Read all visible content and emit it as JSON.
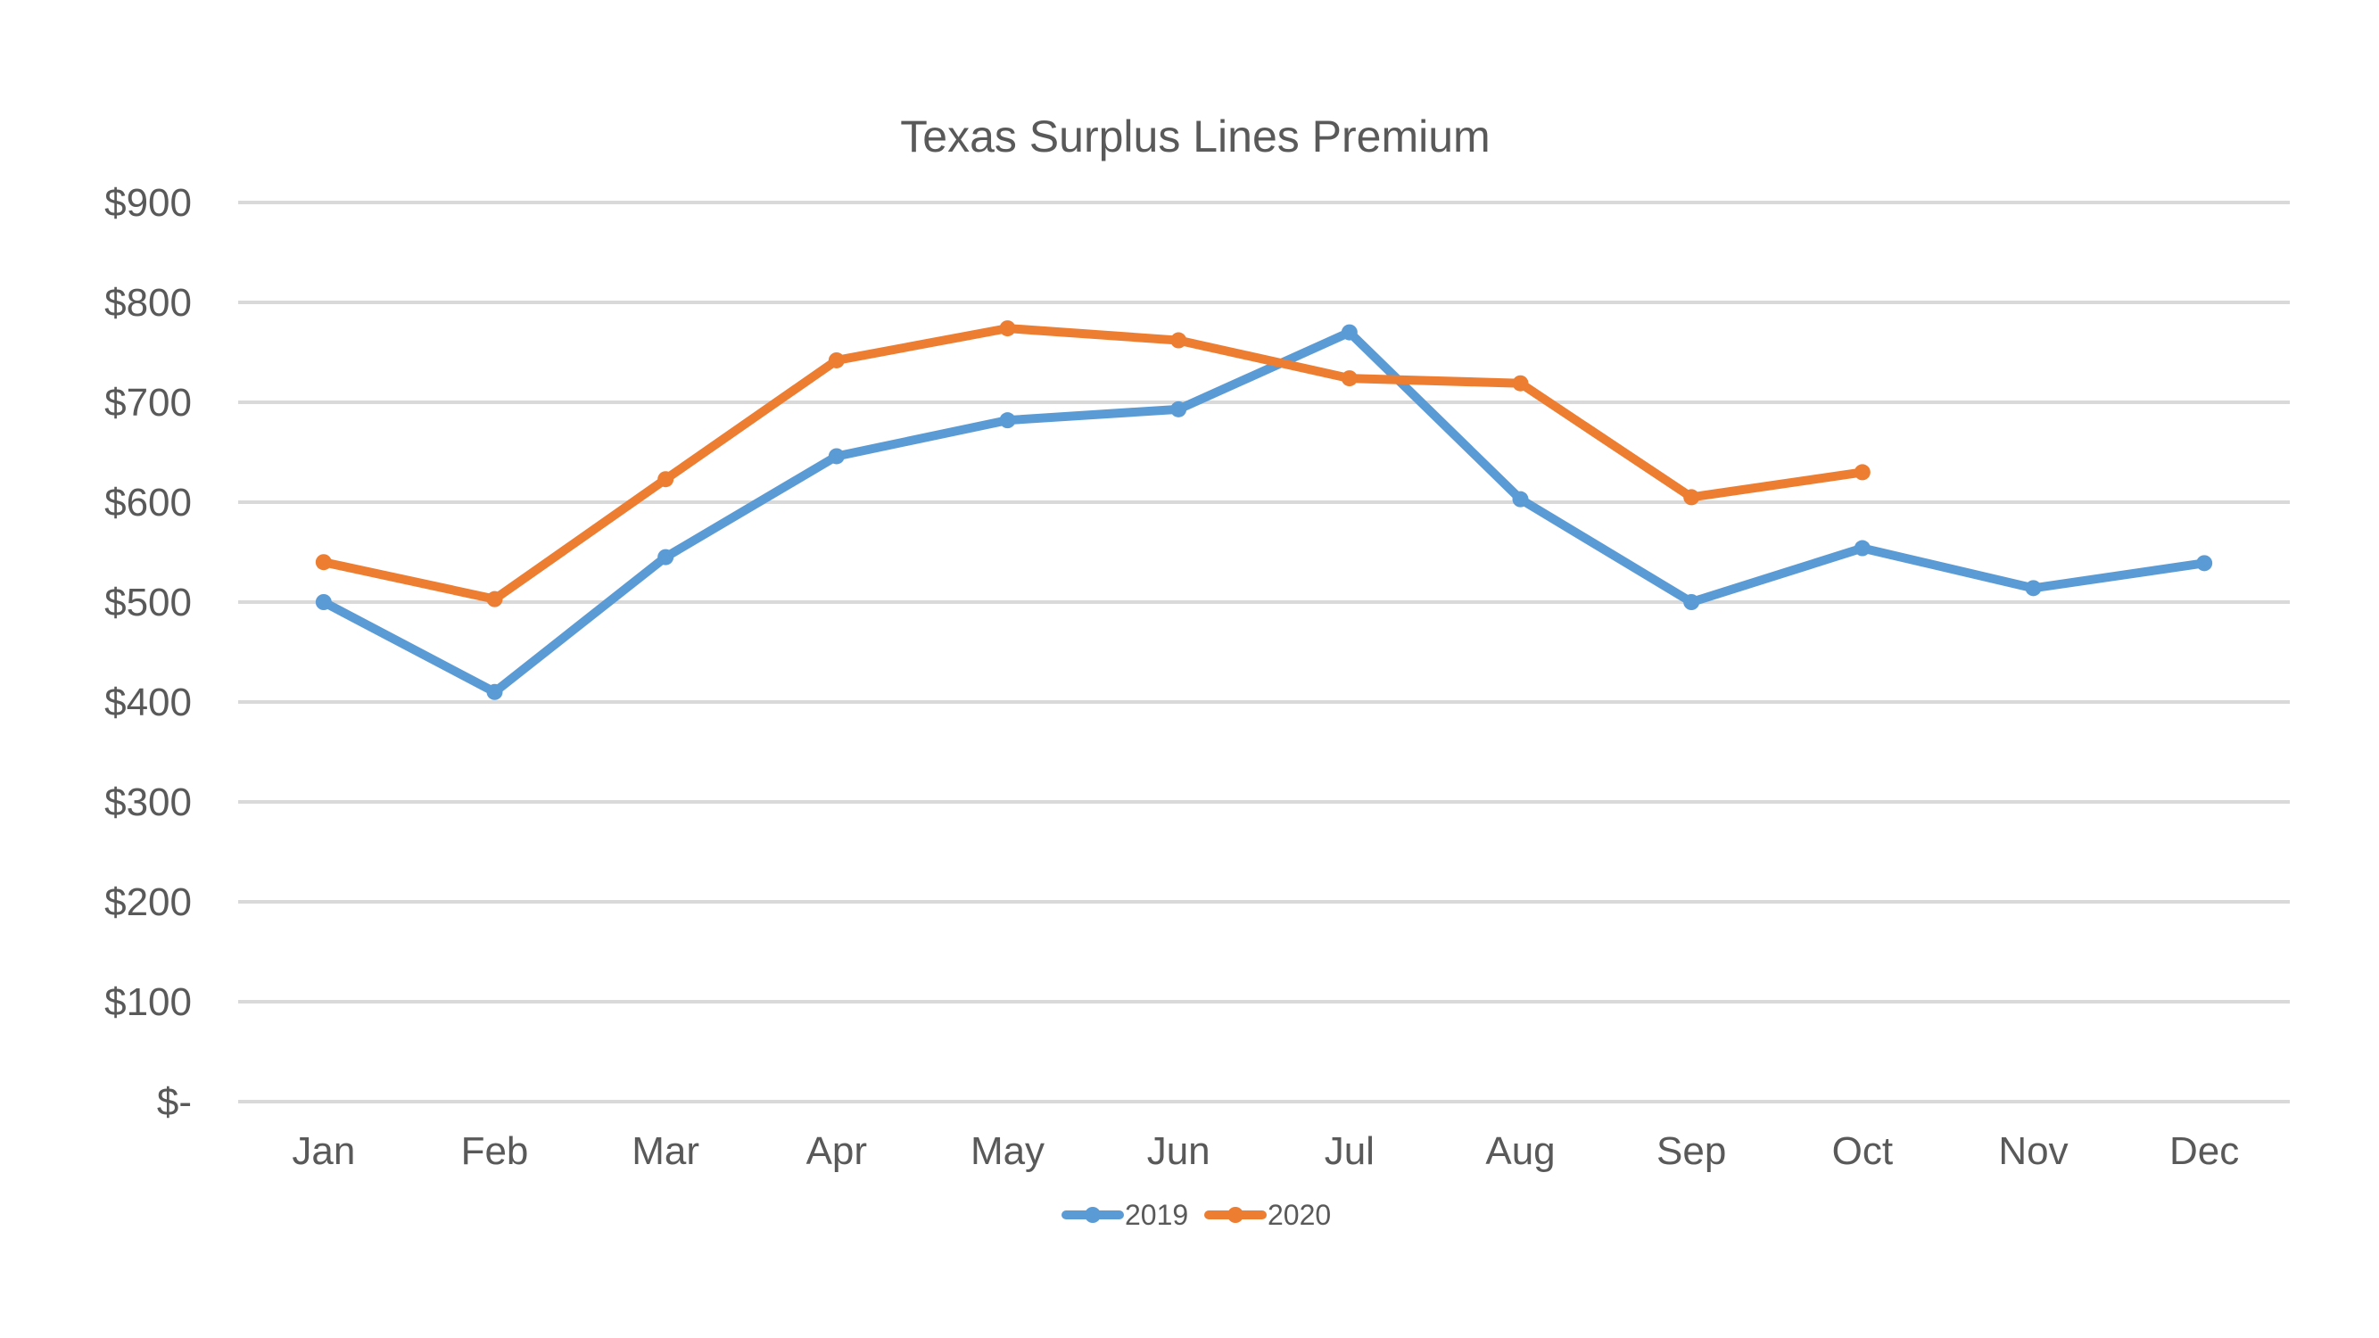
{
  "chart_data": {
    "type": "line",
    "title": "Texas Surplus Lines Premium",
    "xlabel": "",
    "ylabel": "",
    "categories": [
      "Jan",
      "Feb",
      "Mar",
      "Apr",
      "May",
      "Jun",
      "Jul",
      "Aug",
      "Sep",
      "Oct",
      "Nov",
      "Dec"
    ],
    "y_ticks": [
      "$-",
      "$100",
      "$200",
      "$300",
      "$400",
      "$500",
      "$600",
      "$700",
      "$800",
      "$900"
    ],
    "ylim": [
      0,
      900
    ],
    "grid": true,
    "legend_position": "bottom",
    "series": [
      {
        "name": "2019",
        "color": "#5b9bd5",
        "values": [
          500,
          410,
          545,
          646,
          682,
          693,
          770,
          603,
          500,
          554,
          514,
          539
        ]
      },
      {
        "name": "2020",
        "color": "#ed7d31",
        "values": [
          540,
          503,
          623,
          742,
          774,
          762,
          724,
          719,
          605,
          630,
          null,
          null
        ]
      }
    ]
  }
}
